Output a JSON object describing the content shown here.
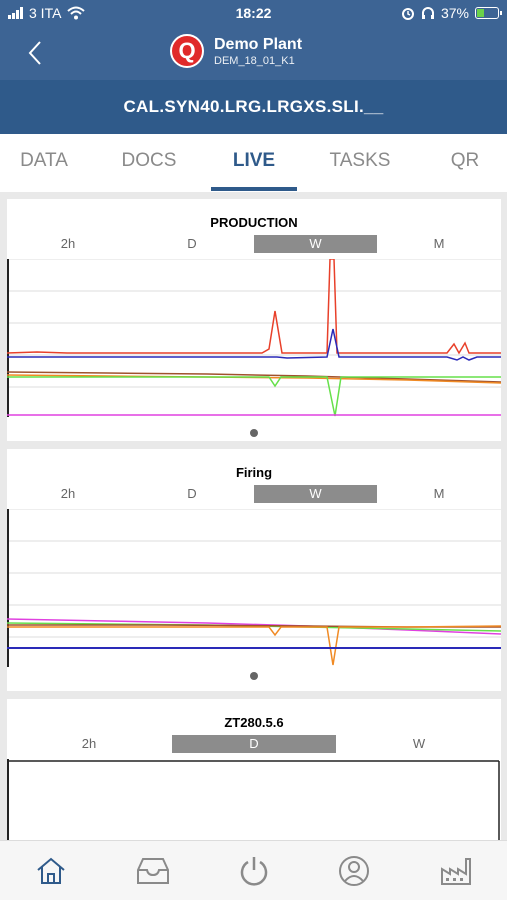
{
  "status_bar": {
    "carrier": "3 ITA",
    "time": "18:22",
    "battery": "37%",
    "battery_level": 0.37,
    "icons": [
      "signal-icon",
      "wifi-icon",
      "alarm-icon",
      "headphones-icon",
      "battery-icon"
    ]
  },
  "header": {
    "back_icon": "chevron-left-icon",
    "logo_letter": "Q",
    "title": "Demo Plant",
    "subtitle": "DEM_18_01_K1"
  },
  "code": "CAL.SYN40.LRG.LRGXS.SLI.__",
  "tabs": [
    {
      "label": "DATA",
      "active": false
    },
    {
      "label": "DOCS",
      "active": false
    },
    {
      "label": "LIVE",
      "active": true
    },
    {
      "label": "TASKS",
      "active": false
    },
    {
      "label": "QR",
      "active": false
    }
  ],
  "cards": [
    {
      "title": "PRODUCTION",
      "ranges": [
        "2h",
        "D",
        "W",
        "M"
      ],
      "selected_range": "W"
    },
    {
      "title": "Firing",
      "ranges": [
        "2h",
        "D",
        "W",
        "M"
      ],
      "selected_range": "W"
    },
    {
      "title": "ZT280.5.6",
      "ranges": [
        "2h",
        "D",
        "W"
      ],
      "selected_range": "D"
    }
  ],
  "colors": {
    "header_bg": "#3d6494",
    "codebar_bg": "#2f5a8a",
    "active_tab": "#2f5a8a",
    "series_red": "#e8402a",
    "series_blue": "#2a2ab8",
    "series_orange": "#f08a24",
    "series_green": "#66e04a",
    "series_magenta": "#e040e0",
    "series_brown": "#a0522d"
  },
  "bottom_nav": [
    {
      "icon": "home-icon",
      "active": true
    },
    {
      "icon": "inbox-icon",
      "active": false
    },
    {
      "icon": "power-icon",
      "active": false
    },
    {
      "icon": "user-icon",
      "active": false
    },
    {
      "icon": "factory-icon",
      "active": false
    }
  ]
}
